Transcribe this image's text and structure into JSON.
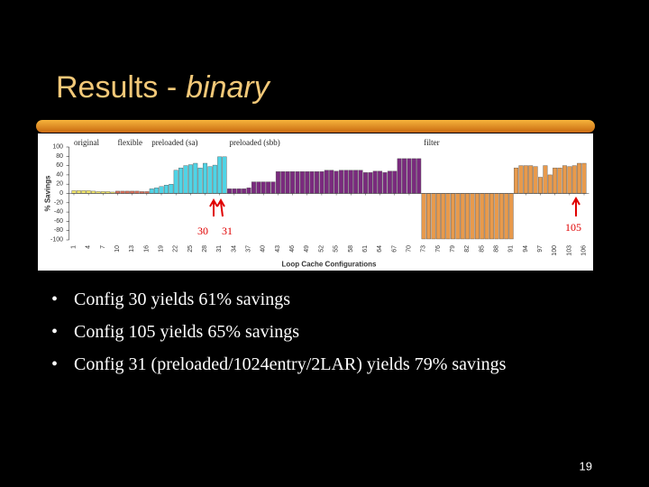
{
  "slide": {
    "title": "Results -",
    "title_emphasis": "binary",
    "bullets": [
      "Config 30 yields 61% savings",
      "Config 105 yields 65% savings",
      "Config 31 (preloaded/1024entry/2LAR) yields 79% savings"
    ],
    "page_number": "19"
  },
  "chart_data": {
    "type": "bar",
    "y_label": "% Savings",
    "x_label": "Loop Cache Configurations",
    "annotations": [
      "30",
      "31",
      "105"
    ],
    "xlim": [
      0,
      107
    ],
    "xticks": [
      1,
      4,
      7,
      10,
      13,
      16,
      19,
      22,
      25,
      28,
      31,
      34,
      37,
      40,
      43,
      46,
      49,
      52,
      55,
      58,
      61,
      64,
      67,
      70,
      73,
      76,
      79,
      82,
      85,
      88,
      91,
      94,
      97,
      100,
      103,
      106
    ],
    "ylim": [
      -100,
      100
    ],
    "yticks": [
      -100,
      -80,
      -60,
      -40,
      -20,
      0,
      20,
      40,
      60,
      80,
      100
    ],
    "series": [
      {
        "name": "original",
        "color": "#f2e66a",
        "x": [
          1,
          2,
          3,
          4,
          5,
          6,
          7,
          8,
          9
        ],
        "values": [
          6,
          6,
          6,
          6,
          5,
          4,
          4,
          4,
          3
        ]
      },
      {
        "name": "flexible",
        "color": "#d9705a",
        "x": [
          10,
          11,
          12,
          13,
          14,
          15,
          16
        ],
        "values": [
          5,
          5,
          5,
          5,
          5,
          4,
          4
        ]
      },
      {
        "name": "preloaded (sa)",
        "color": "#4fd4e6",
        "x": [
          17,
          18,
          19,
          20,
          21,
          22,
          23,
          24,
          25,
          26,
          27,
          28,
          29,
          30,
          31,
          32
        ],
        "values": [
          10,
          12,
          15,
          18,
          20,
          50,
          55,
          60,
          62,
          65,
          55,
          65,
          58,
          61,
          79,
          79
        ]
      },
      {
        "name": "preloaded (sbb)",
        "color": "#7a2a7e",
        "x": [
          33,
          34,
          35,
          36,
          37,
          38,
          39,
          40,
          41,
          42,
          43,
          44,
          45,
          46,
          47,
          48,
          49,
          50,
          51,
          52,
          53,
          54,
          55,
          56,
          57,
          58,
          59,
          60,
          61,
          62,
          63,
          64,
          65,
          66,
          67,
          68,
          69,
          70,
          71,
          72
        ],
        "values": [
          10,
          10,
          10,
          10,
          12,
          25,
          25,
          25,
          25,
          25,
          47,
          47,
          47,
          47,
          47,
          47,
          47,
          47,
          47,
          47,
          50,
          50,
          48,
          50,
          50,
          50,
          50,
          50,
          45,
          45,
          48,
          48,
          45,
          48,
          48,
          75,
          75,
          75,
          75,
          75
        ]
      },
      {
        "name": "filter",
        "color": "#e89a4c",
        "x": [
          73,
          74,
          75,
          76,
          77,
          78,
          79,
          80,
          81,
          82,
          83,
          84,
          85,
          86,
          87,
          88,
          89,
          90,
          91,
          92,
          93,
          94,
          95,
          96,
          97,
          98,
          99,
          100,
          101,
          102,
          103,
          104,
          105,
          106
        ],
        "values": [
          -98,
          -98,
          -98,
          -98,
          -98,
          -98,
          -98,
          -98,
          -98,
          -98,
          -98,
          -98,
          -98,
          -98,
          -98,
          -98,
          -98,
          -98,
          -98,
          55,
          60,
          60,
          60,
          58,
          35,
          60,
          40,
          55,
          55,
          60,
          58,
          60,
          65,
          65
        ]
      }
    ]
  }
}
